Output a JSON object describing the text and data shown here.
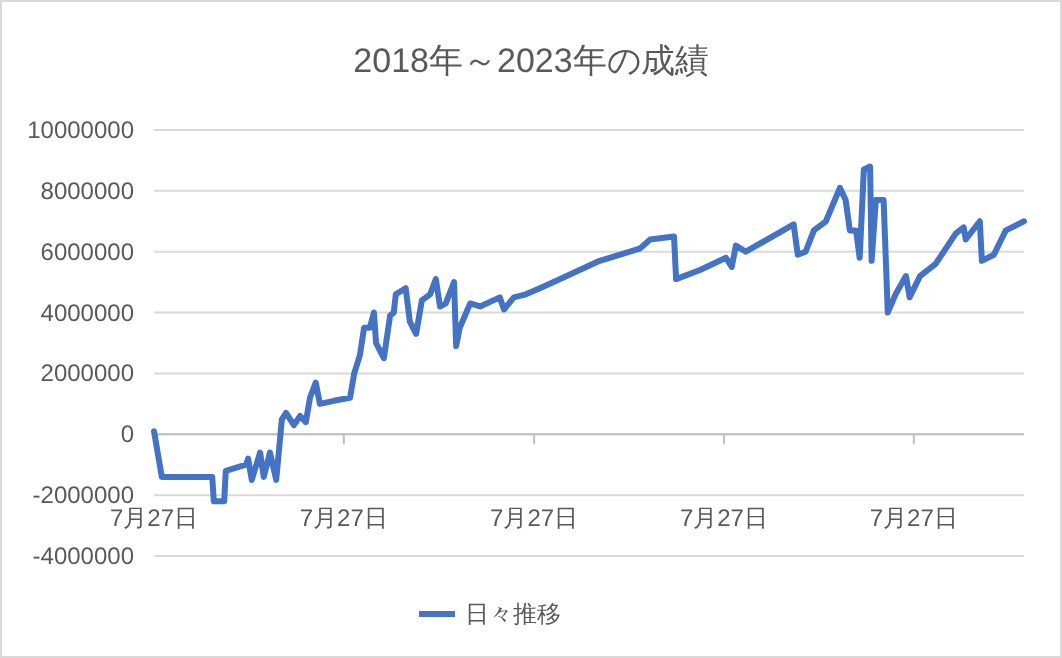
{
  "chart_data": {
    "type": "line",
    "title": "2018年～2023年の成績",
    "x": [
      "2018-07-27",
      "2018-08-11",
      "2018-10-23",
      "2018-11-16",
      "2018-11-19",
      "2018-12-09",
      "2018-12-12",
      "2019-01-20",
      "2019-01-24",
      "2019-01-31",
      "2019-02-16",
      "2019-02-23",
      "2019-03-07",
      "2019-03-19",
      "2019-03-30",
      "2019-04-07",
      "2019-04-22",
      "2019-05-04",
      "2019-05-15",
      "2019-05-23",
      "2019-06-03",
      "2019-06-11",
      "2019-07-08",
      "2019-08-08",
      "2019-08-16",
      "2019-08-27",
      "2019-09-04",
      "2019-09-15",
      "2019-09-23",
      "2019-09-27",
      "2019-10-12",
      "2019-10-24",
      "2019-10-31",
      "2019-11-04",
      "2019-11-23",
      "2019-12-01",
      "2019-12-13",
      "2019-12-24",
      "2020-01-09",
      "2020-01-20",
      "2020-01-28",
      "2020-02-08",
      "2020-02-24",
      "2020-02-28",
      "2020-03-06",
      "2020-03-26",
      "2020-04-14",
      "2020-05-22",
      "2020-05-30",
      "2020-06-18",
      "2020-07-11",
      "2020-08-07",
      "2020-09-15",
      "2020-11-04",
      "2020-11-30",
      "2021-02-15",
      "2021-03-07",
      "2021-04-22",
      "2021-04-26",
      "2021-06-11",
      "2021-07-31",
      "2021-08-11",
      "2021-08-19",
      "2021-09-07",
      "2021-12-08",
      "2021-12-16",
      "2021-12-31",
      "2022-01-16",
      "2022-02-08",
      "2022-03-07",
      "2022-03-18",
      "2022-03-26",
      "2022-04-07",
      "2022-04-14",
      "2022-04-22",
      "2022-05-04",
      "2022-05-07",
      "2022-05-15",
      "2022-05-30",
      "2022-06-07",
      "2022-06-22",
      "2022-07-12",
      "2022-07-19",
      "2022-08-08",
      "2022-09-07",
      "2022-10-16",
      "2022-10-31",
      "2022-11-04",
      "2022-12-01",
      "2022-12-05",
      "2022-12-28",
      "2023-01-20",
      "2023-02-24"
    ],
    "series": [
      {
        "name": "日々推移",
        "color": "#4472c4",
        "values": [
          100000,
          -1400000,
          -1400000,
          -1400000,
          -2200000,
          -2200000,
          -1200000,
          -1000000,
          -800000,
          -1500000,
          -600000,
          -1400000,
          -600000,
          -1500000,
          500000,
          700000,
          300000,
          600000,
          400000,
          1200000,
          1700000,
          1000000,
          1100000,
          1200000,
          2000000,
          2600000,
          3500000,
          3500000,
          4000000,
          3000000,
          2500000,
          3900000,
          4000000,
          4600000,
          4800000,
          3700000,
          3300000,
          4400000,
          4600000,
          5100000,
          4200000,
          4300000,
          5000000,
          2900000,
          3500000,
          4300000,
          4200000,
          4500000,
          4100000,
          4500000,
          4600000,
          4800000,
          5100000,
          5500000,
          5700000,
          6100000,
          6400000,
          6500000,
          5100000,
          5400000,
          5800000,
          5500000,
          6200000,
          6000000,
          6900000,
          5900000,
          6000000,
          6700000,
          7000000,
          8100000,
          7700000,
          6700000,
          6700000,
          5800000,
          8700000,
          8800000,
          5700000,
          7700000,
          7700000,
          4000000,
          4600000,
          5200000,
          4500000,
          5200000,
          5600000,
          6600000,
          6800000,
          6400000,
          7000000,
          5700000,
          5900000,
          6700000,
          7000000
        ]
      }
    ],
    "xlim": [
      "2018-07-27",
      "2023-02-24"
    ],
    "xticks": [
      {
        "value": "2018-07-27",
        "label": "7月27日"
      },
      {
        "value": "2019-07-27",
        "label": "7月27日"
      },
      {
        "value": "2020-07-27",
        "label": "7月27日"
      },
      {
        "value": "2021-07-27",
        "label": "7月27日"
      },
      {
        "value": "2022-07-27",
        "label": "7月27日"
      }
    ],
    "ylim": [
      -4000000,
      10000000
    ],
    "yticks": [
      -4000000,
      -2000000,
      0,
      2000000,
      4000000,
      6000000,
      8000000,
      10000000
    ],
    "grid": "y",
    "legend": "bottom",
    "marker": "none",
    "line_style": "solid"
  }
}
